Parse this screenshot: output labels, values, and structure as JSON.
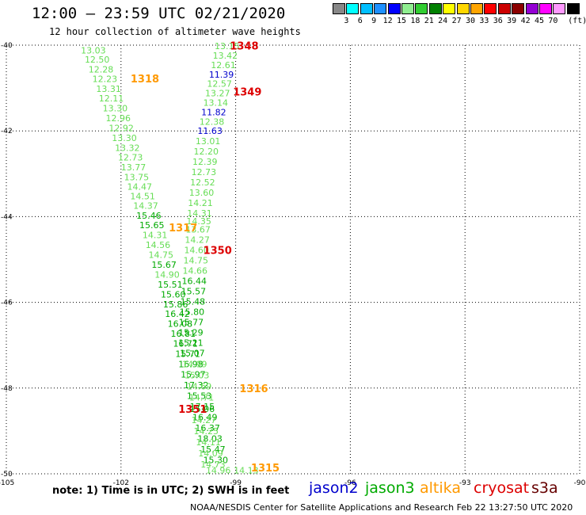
{
  "header": {
    "title": "12:00 – 23:59 UTC 02/21/2020",
    "subtitle": "12 hour collection of altimeter wave heights"
  },
  "scale": {
    "unit": "(ft)",
    "swatches": [
      {
        "color": "#888888",
        "label": ""
      },
      {
        "color": "#00ffff",
        "label": "3"
      },
      {
        "color": "#00bfff",
        "label": "6"
      },
      {
        "color": "#1e90ff",
        "label": "9"
      },
      {
        "color": "#0000ff",
        "label": "12"
      },
      {
        "color": "#90ee90",
        "label": "15"
      },
      {
        "color": "#32cd32",
        "label": "18"
      },
      {
        "color": "#008000",
        "label": "21"
      },
      {
        "color": "#ffff00",
        "label": "24"
      },
      {
        "color": "#ffd700",
        "label": "27"
      },
      {
        "color": "#ffa500",
        "label": "30"
      },
      {
        "color": "#ff0000",
        "label": "33"
      },
      {
        "color": "#cc0000",
        "label": "36"
      },
      {
        "color": "#8b0000",
        "label": "39"
      },
      {
        "color": "#9400d3",
        "label": "42"
      },
      {
        "color": "#ff00ff",
        "label": "45"
      },
      {
        "color": "#ff99ff",
        "label": "70"
      },
      {
        "color": "#000000",
        "label": ""
      }
    ]
  },
  "map": {
    "lon_range": [
      -105,
      -90
    ],
    "lat_range": [
      -50,
      -40
    ],
    "lon_ticks": [
      {
        "v": -105,
        "label": "-105"
      },
      {
        "v": -102,
        "label": "-102"
      },
      {
        "v": -99,
        "label": "-99"
      },
      {
        "v": -96,
        "label": "-96"
      },
      {
        "v": -93,
        "label": "-93"
      },
      {
        "v": -90,
        "label": "-90"
      }
    ],
    "lat_ticks": [
      {
        "v": -40,
        "label": "-40"
      },
      {
        "v": -42,
        "label": "-42"
      },
      {
        "v": -44,
        "label": "-44"
      },
      {
        "v": -46,
        "label": "-46"
      },
      {
        "v": -48,
        "label": "-48"
      },
      {
        "v": -50,
        "label": "-50"
      }
    ],
    "colors": {
      "light": "#66dd55",
      "green": "#00aa00",
      "blue": "#0000cc",
      "orange": "#ff9900",
      "red": "#dd0000"
    },
    "track_labels": [
      {
        "text": "1348",
        "lon": -99.15,
        "lat": -40.01,
        "color": "red"
      },
      {
        "text": "1349",
        "lon": -99.07,
        "lat": -41.08,
        "color": "red"
      },
      {
        "text": "1318",
        "lon": -101.75,
        "lat": -40.78,
        "color": "orange"
      },
      {
        "text": "1317",
        "lon": -100.75,
        "lat": -44.25,
        "color": "orange"
      },
      {
        "text": "1350",
        "lon": -99.85,
        "lat": -44.78,
        "color": "red"
      },
      {
        "text": "1316",
        "lon": -98.9,
        "lat": -48.0,
        "color": "orange"
      },
      {
        "text": "1351",
        "lon": -100.5,
        "lat": -48.48,
        "color": "red"
      },
      {
        "text": "1315",
        "lon": -98.6,
        "lat": -49.85,
        "color": "orange"
      }
    ],
    "obs": [
      {
        "t": "13.03",
        "lon": -103.05,
        "lat": -40.12,
        "c": "light"
      },
      {
        "t": "12.50",
        "lon": -102.95,
        "lat": -40.33,
        "c": "light"
      },
      {
        "t": "12.28",
        "lon": -102.85,
        "lat": -40.56,
        "c": "light"
      },
      {
        "t": "12.23",
        "lon": -102.75,
        "lat": -40.79,
        "c": "light"
      },
      {
        "t": "13.31",
        "lon": -102.65,
        "lat": -41.02,
        "c": "light"
      },
      {
        "t": "12.11",
        "lon": -102.58,
        "lat": -41.24,
        "c": "light"
      },
      {
        "t": "13.30",
        "lon": -102.48,
        "lat": -41.47,
        "c": "light"
      },
      {
        "t": "12.96",
        "lon": -102.4,
        "lat": -41.7,
        "c": "light"
      },
      {
        "t": "12.92",
        "lon": -102.32,
        "lat": -41.93,
        "c": "light"
      },
      {
        "t": "13.30",
        "lon": -102.24,
        "lat": -42.16,
        "c": "light"
      },
      {
        "t": "13.32",
        "lon": -102.16,
        "lat": -42.39,
        "c": "light"
      },
      {
        "t": "12.73",
        "lon": -102.08,
        "lat": -42.62,
        "c": "light"
      },
      {
        "t": "13.77",
        "lon": -102.0,
        "lat": -42.85,
        "c": "light"
      },
      {
        "t": "13.75",
        "lon": -101.92,
        "lat": -43.08,
        "c": "light"
      },
      {
        "t": "14.47",
        "lon": -101.84,
        "lat": -43.3,
        "c": "light"
      },
      {
        "t": "14.51",
        "lon": -101.76,
        "lat": -43.52,
        "c": "light"
      },
      {
        "t": "14.37",
        "lon": -101.68,
        "lat": -43.74,
        "c": "light"
      },
      {
        "t": "15.46",
        "lon": -101.6,
        "lat": -43.97,
        "c": "green"
      },
      {
        "t": "15.65",
        "lon": -101.52,
        "lat": -44.2,
        "c": "green"
      },
      {
        "t": "14.31",
        "lon": -101.44,
        "lat": -44.43,
        "c": "light"
      },
      {
        "t": "14.56",
        "lon": -101.36,
        "lat": -44.66,
        "c": "light"
      },
      {
        "t": "14.75",
        "lon": -101.28,
        "lat": -44.89,
        "c": "light"
      },
      {
        "t": "15.67",
        "lon": -101.2,
        "lat": -45.12,
        "c": "green"
      },
      {
        "t": "14.90",
        "lon": -101.12,
        "lat": -45.35,
        "c": "light"
      },
      {
        "t": "15.51",
        "lon": -101.04,
        "lat": -45.58,
        "c": "green"
      },
      {
        "t": "15.60",
        "lon": -100.96,
        "lat": -45.81,
        "c": "green"
      },
      {
        "t": "15.86",
        "lon": -100.9,
        "lat": -46.04,
        "c": "green"
      },
      {
        "t": "16.42",
        "lon": -100.85,
        "lat": -46.27,
        "c": "green"
      },
      {
        "t": "16.08",
        "lon": -100.78,
        "lat": -46.5,
        "c": "green"
      },
      {
        "t": "16.81",
        "lon": -100.7,
        "lat": -46.73,
        "c": "green"
      },
      {
        "t": "16.71",
        "lon": -100.64,
        "lat": -46.96,
        "c": "green"
      },
      {
        "t": "15.71",
        "lon": -100.58,
        "lat": -47.2,
        "c": "green"
      },
      {
        "t": "16.98",
        "lon": -100.5,
        "lat": -47.44,
        "c": "green"
      },
      {
        "t": "15.97",
        "lon": -100.44,
        "lat": -47.68,
        "c": "green"
      },
      {
        "t": "17.32",
        "lon": -100.36,
        "lat": -47.93,
        "c": "green"
      },
      {
        "t": "15.53",
        "lon": -100.28,
        "lat": -48.18,
        "c": "green"
      },
      {
        "t": "17.15",
        "lon": -100.2,
        "lat": -48.43,
        "c": "green"
      },
      {
        "t": "16.49",
        "lon": -100.13,
        "lat": -48.68,
        "c": "green"
      },
      {
        "t": "16.37",
        "lon": -100.06,
        "lat": -48.93,
        "c": "green"
      },
      {
        "t": "18.03",
        "lon": -100.0,
        "lat": -49.18,
        "c": "green"
      },
      {
        "t": "15.47",
        "lon": -99.92,
        "lat": -49.43,
        "c": "green"
      },
      {
        "t": "15.30",
        "lon": -99.85,
        "lat": -49.68,
        "c": "green"
      },
      {
        "t": "14.96",
        "lon": -99.78,
        "lat": -49.92,
        "c": "light"
      },
      {
        "t": "13.15",
        "lon": -99.55,
        "lat": -40.02,
        "c": "light"
      },
      {
        "t": "13.42",
        "lon": -99.6,
        "lat": -40.24,
        "c": "light"
      },
      {
        "t": "12.61",
        "lon": -99.65,
        "lat": -40.46,
        "c": "light"
      },
      {
        "t": "11.39",
        "lon": -99.7,
        "lat": -40.68,
        "c": "blue"
      },
      {
        "t": "12.57",
        "lon": -99.75,
        "lat": -40.9,
        "c": "light"
      },
      {
        "t": "13.27",
        "lon": -99.8,
        "lat": -41.12,
        "c": "light"
      },
      {
        "t": "13.14",
        "lon": -99.85,
        "lat": -41.34,
        "c": "light"
      },
      {
        "t": "11.82",
        "lon": -99.9,
        "lat": -41.56,
        "c": "blue"
      },
      {
        "t": "12.38",
        "lon": -99.95,
        "lat": -41.78,
        "c": "light"
      },
      {
        "t": "11.63",
        "lon": -100.0,
        "lat": -42.0,
        "c": "blue"
      },
      {
        "t": "13.01",
        "lon": -100.05,
        "lat": -42.24,
        "c": "light"
      },
      {
        "t": "12.20",
        "lon": -100.1,
        "lat": -42.48,
        "c": "light"
      },
      {
        "t": "12.39",
        "lon": -100.13,
        "lat": -42.72,
        "c": "light"
      },
      {
        "t": "12.73",
        "lon": -100.16,
        "lat": -42.96,
        "c": "light"
      },
      {
        "t": "12.52",
        "lon": -100.19,
        "lat": -43.2,
        "c": "light"
      },
      {
        "t": "13.60",
        "lon": -100.22,
        "lat": -43.44,
        "c": "light"
      },
      {
        "t": "14.21",
        "lon": -100.25,
        "lat": -43.68,
        "c": "light"
      },
      {
        "t": "14.31",
        "lon": -100.27,
        "lat": -43.92,
        "c": "light"
      },
      {
        "t": "14.35",
        "lon": -100.29,
        "lat": -44.1,
        "c": "light"
      },
      {
        "t": "13.67",
        "lon": -100.31,
        "lat": -44.3,
        "c": "light"
      },
      {
        "t": "14.27",
        "lon": -100.33,
        "lat": -44.54,
        "c": "light"
      },
      {
        "t": "14.60",
        "lon": -100.35,
        "lat": -44.78,
        "c": "light"
      },
      {
        "t": "14.75",
        "lon": -100.37,
        "lat": -45.02,
        "c": "light"
      },
      {
        "t": "14.66",
        "lon": -100.39,
        "lat": -45.26,
        "c": "light"
      },
      {
        "t": "16.44",
        "lon": -100.41,
        "lat": -45.5,
        "c": "green"
      },
      {
        "t": "15.57",
        "lon": -100.43,
        "lat": -45.74,
        "c": "green"
      },
      {
        "t": "15.48",
        "lon": -100.45,
        "lat": -45.98,
        "c": "green"
      },
      {
        "t": "15.80",
        "lon": -100.47,
        "lat": -46.22,
        "c": "green"
      },
      {
        "t": "15.77",
        "lon": -100.49,
        "lat": -46.46,
        "c": "green"
      },
      {
        "t": "15.29",
        "lon": -100.5,
        "lat": -46.7,
        "c": "green"
      },
      {
        "t": "15.21",
        "lon": -100.5,
        "lat": -46.94,
        "c": "green"
      },
      {
        "t": "15.07",
        "lon": -100.46,
        "lat": -47.18,
        "c": "green"
      },
      {
        "t": "14.99",
        "lon": -100.4,
        "lat": -47.44,
        "c": "light"
      },
      {
        "t": "15.03",
        "lon": -100.34,
        "lat": -47.7,
        "c": "light"
      },
      {
        "t": "14.69",
        "lon": -100.28,
        "lat": -47.96,
        "c": "light"
      },
      {
        "t": "14.71",
        "lon": -100.22,
        "lat": -48.22,
        "c": "light"
      },
      {
        "t": "15.06",
        "lon": -100.2,
        "lat": -48.48,
        "c": "green"
      },
      {
        "t": "14.27",
        "lon": -100.16,
        "lat": -48.74,
        "c": "light"
      },
      {
        "t": "14.25",
        "lon": -100.1,
        "lat": -49.0,
        "c": "light"
      },
      {
        "t": "14.11",
        "lon": -100.04,
        "lat": -49.26,
        "c": "light"
      },
      {
        "t": "14.09",
        "lon": -99.98,
        "lat": -49.52,
        "c": "light"
      },
      {
        "t": "14.73",
        "lon": -99.92,
        "lat": -49.78,
        "c": "light"
      },
      {
        "t": "14.13",
        "lon": -99.05,
        "lat": -49.92,
        "c": "light"
      }
    ]
  },
  "footer": {
    "note": "note:  1) Time is in UTC; 2) SWH is in feet",
    "satellites": [
      {
        "name": "jason2",
        "color": "#0000cc"
      },
      {
        "name": "jason3",
        "color": "#00aa00"
      },
      {
        "name": "altika",
        "color": "#ff9900"
      },
      {
        "name": "cryosat",
        "color": "#dd0000"
      },
      {
        "name": "s3a",
        "color": "#660000"
      }
    ],
    "credit": "NOAA/NESDIS Center for Satellite Applications and Research    Feb 22 13:27:50 UTC 2020"
  }
}
